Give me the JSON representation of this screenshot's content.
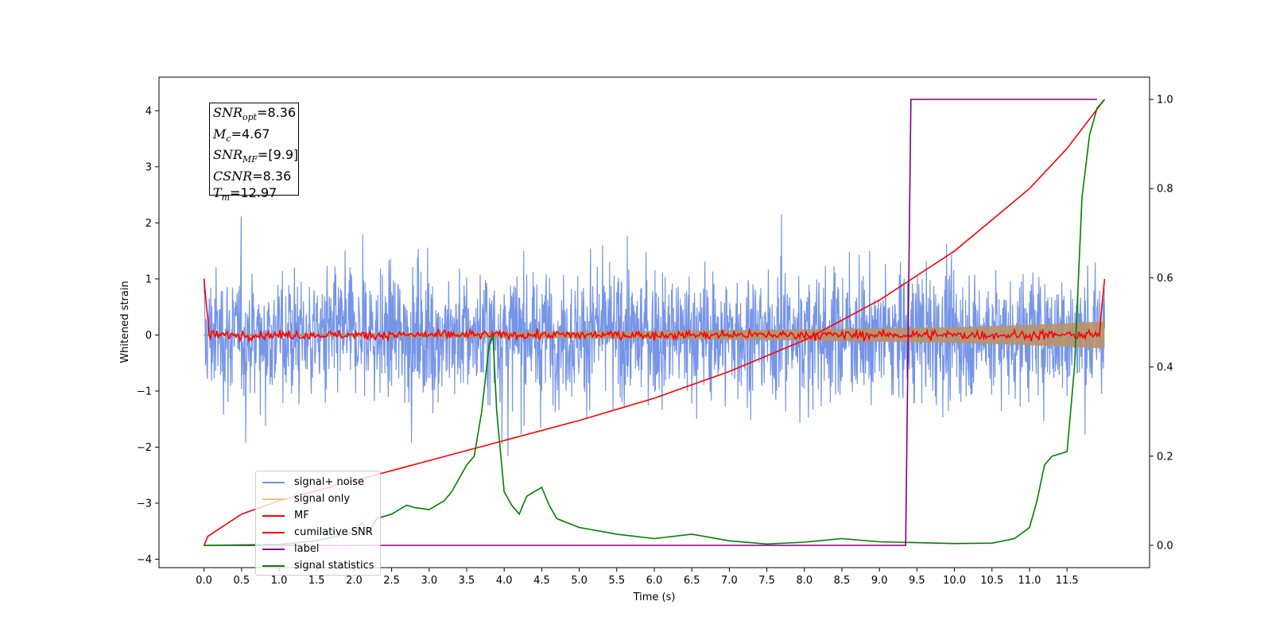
{
  "chart_data": {
    "type": "line",
    "xlabel": "Time (s)",
    "ylabel": "Whitened strain",
    "xlim": [
      -0.6,
      12.6
    ],
    "ylim": [
      -4.15,
      4.6
    ],
    "y2lim": [
      -0.05,
      1.05
    ],
    "xticks": [
      0.0,
      0.5,
      1.0,
      1.5,
      2.0,
      2.5,
      3.0,
      3.5,
      4.0,
      4.5,
      5.0,
      5.5,
      6.0,
      6.5,
      7.0,
      7.5,
      8.0,
      8.5,
      9.0,
      9.5,
      10.0,
      10.5,
      11.0,
      11.5
    ],
    "xtick_labels": [
      "0.0",
      "0.5",
      "1.0",
      "1.5",
      "2.0",
      "2.5",
      "3.0",
      "3.5",
      "4.0",
      "4.5",
      "5.0",
      "5.5",
      "6.0",
      "6.5",
      "7.0",
      "7.5",
      "8.0",
      "8.5",
      "9.0",
      "9.5",
      "10.0",
      "10.5",
      "11.0",
      "11.5"
    ],
    "yticks": [
      -4,
      -3,
      -2,
      -1,
      0,
      1,
      2,
      3,
      4
    ],
    "ytick_labels": [
      "−4",
      "−3",
      "−2",
      "−1",
      "0",
      "1",
      "2",
      "3",
      "4"
    ],
    "y2ticks": [
      0.0,
      0.2,
      0.4,
      0.6,
      0.8,
      1.0
    ],
    "y2tick_labels": [
      "0.0",
      "0.2",
      "0.4",
      "0.6",
      "0.8",
      "1.0"
    ],
    "grid": false,
    "legend_position": "lower-left",
    "series": [
      {
        "name": "signal+ noise",
        "color": "#6f8fe6",
        "axis": "left",
        "x_range": [
          0.0,
          12.0
        ],
        "amplitude_envelope": [
          2.6,
          3.8
        ],
        "note_type": "noisy"
      },
      {
        "name": "signal only",
        "color": "#ffbf70",
        "axis": "left",
        "x": [
          0.0,
          2.0,
          4.0,
          6.0,
          8.0,
          10.0,
          11.0,
          12.0
        ],
        "y_envelope": [
          0.02,
          0.03,
          0.05,
          0.07,
          0.1,
          0.14,
          0.18,
          0.24
        ]
      },
      {
        "name": "MF",
        "color": "#ff0000",
        "axis": "left",
        "x_range": [
          0.0,
          12.0
        ],
        "start": 1.0,
        "end": 1.0,
        "typical_amplitude": 0.12
      },
      {
        "name": "cumilative SNR",
        "color": "#ff0000",
        "axis": "right",
        "x": [
          0.0,
          0.05,
          0.5,
          1.0,
          2.0,
          3.0,
          4.0,
          5.0,
          6.0,
          7.0,
          8.0,
          9.0,
          10.0,
          10.5,
          11.0,
          11.5,
          12.0
        ],
        "y": [
          0.0,
          0.02,
          0.07,
          0.1,
          0.145,
          0.19,
          0.235,
          0.28,
          0.33,
          0.39,
          0.46,
          0.55,
          0.66,
          0.73,
          0.8,
          0.89,
          1.0
        ]
      },
      {
        "name": "label",
        "color": "#800080",
        "axis": "right",
        "x": [
          0.0,
          9.35,
          9.42,
          11.9
        ],
        "y": [
          0.0,
          0.0,
          1.0,
          1.0
        ]
      },
      {
        "name": "signal statistics",
        "color": "#008000",
        "axis": "right",
        "x": [
          0.0,
          1.0,
          1.5,
          2.0,
          2.1,
          2.2,
          2.3,
          2.5,
          2.7,
          2.8,
          3.0,
          3.2,
          3.3,
          3.4,
          3.5,
          3.6,
          3.7,
          3.8,
          3.85,
          3.9,
          4.0,
          4.1,
          4.2,
          4.3,
          4.4,
          4.5,
          4.6,
          4.7,
          5.0,
          5.5,
          6.0,
          6.5,
          7.0,
          7.5,
          8.0,
          8.5,
          9.0,
          9.5,
          10.0,
          10.5,
          10.8,
          11.0,
          11.1,
          11.2,
          11.3,
          11.5,
          11.6,
          11.7,
          11.8,
          11.9,
          12.0
        ],
        "y": [
          0.0,
          0.002,
          0.01,
          0.03,
          0.05,
          0.03,
          0.06,
          0.07,
          0.09,
          0.085,
          0.08,
          0.1,
          0.12,
          0.15,
          0.18,
          0.2,
          0.3,
          0.45,
          0.47,
          0.3,
          0.12,
          0.09,
          0.07,
          0.11,
          0.12,
          0.13,
          0.09,
          0.06,
          0.04,
          0.025,
          0.015,
          0.025,
          0.01,
          0.003,
          0.007,
          0.015,
          0.008,
          0.006,
          0.004,
          0.005,
          0.015,
          0.04,
          0.1,
          0.18,
          0.2,
          0.21,
          0.4,
          0.78,
          0.92,
          0.98,
          1.0
        ]
      }
    ],
    "annotation": {
      "lines": [
        {
          "base": "SNR",
          "sub": "opt",
          "value": "=8.36"
        },
        {
          "base": "M",
          "sub": "c",
          "value": "=4.67"
        },
        {
          "base": "SNR",
          "sub": "MF",
          "value": "=[9.9]"
        },
        {
          "base": "CSNR",
          "sub": "",
          "value": "=8.36"
        },
        {
          "base": "T",
          "sub": "m",
          "value": "=12.97"
        }
      ]
    }
  }
}
